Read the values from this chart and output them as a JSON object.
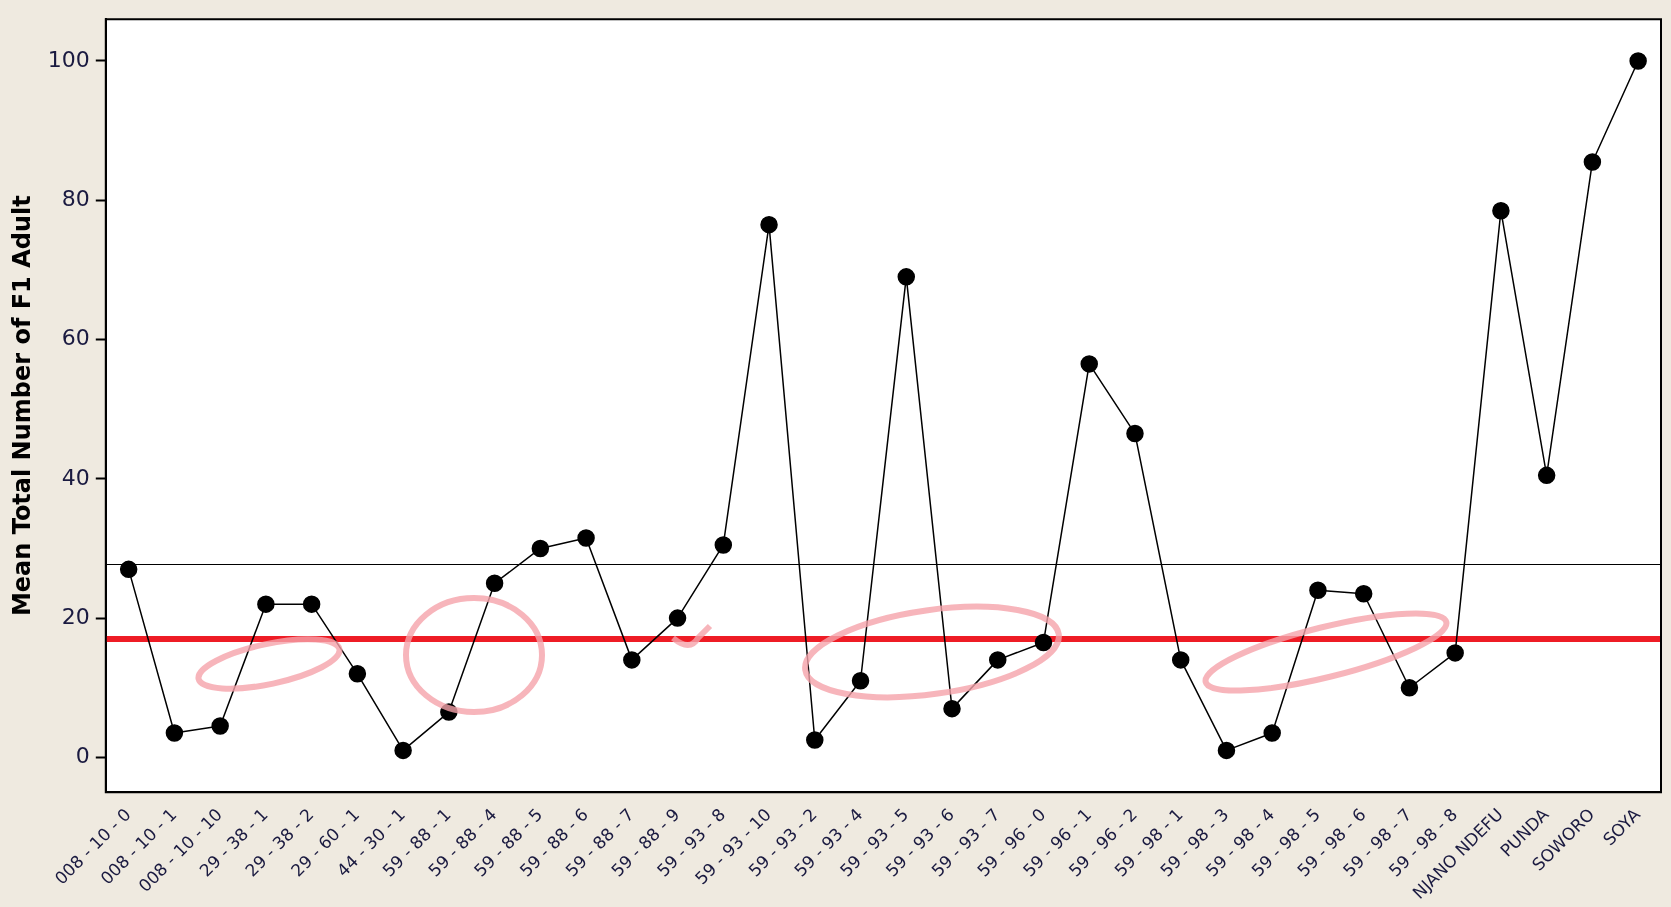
{
  "chart_data": {
    "type": "line",
    "ylabel": "Mean Total Number of F1 Adult",
    "categories": [
      "008 - 10 - 0",
      "008 - 10 - 1",
      "008 - 10 - 10",
      "29 - 38 - 1",
      "29 - 38 - 2",
      "29 - 60 - 1",
      "44 - 30 - 1",
      "59 - 88 - 1",
      "59 - 88 - 4",
      "59 - 88 - 5",
      "59 - 88 - 6",
      "59 - 88 - 7",
      "59 - 88 - 9",
      "59 - 93 - 8",
      "59 - 93 - 10",
      "59 - 93 - 2",
      "59 - 93 - 4",
      "59 - 93 - 5",
      "59 - 93 - 6",
      "59 - 93 - 7",
      "59 - 96 - 0",
      "59 - 96 - 1",
      "59 - 96 - 2",
      "59 - 98 - 1",
      "59 - 98 - 3",
      "59 - 98 - 4",
      "59 - 98 - 5",
      "59 - 98 - 6",
      "59 - 98 - 7",
      "59 - 98 - 8",
      "NJANO NDEFU",
      "PUNDA",
      "SOWORO",
      "SOYA"
    ],
    "series": [
      {
        "color": "#000000",
        "values": [
          27,
          3.5,
          4.5,
          22,
          22,
          12,
          1,
          6.5,
          25,
          30,
          31.5,
          14,
          20,
          30.5,
          76.5,
          2.5,
          11,
          69,
          7,
          14,
          16.5,
          56.5,
          46.5,
          14,
          1,
          3.5,
          24,
          23.5,
          10,
          15,
          78.5,
          40.5,
          85.5,
          100
        ]
      }
    ],
    "ylim": [
      -5,
      106
    ],
    "yticks": [
      0,
      20,
      40,
      60,
      80,
      100
    ],
    "grid": false,
    "legend": false,
    "marker": "circle",
    "line_style": "solid",
    "ref_lines": [
      {
        "axis": "y",
        "value": 27.7,
        "color": "#000000"
      },
      {
        "axis": "y",
        "value": 17,
        "color": "#ee1c25"
      }
    ]
  }
}
